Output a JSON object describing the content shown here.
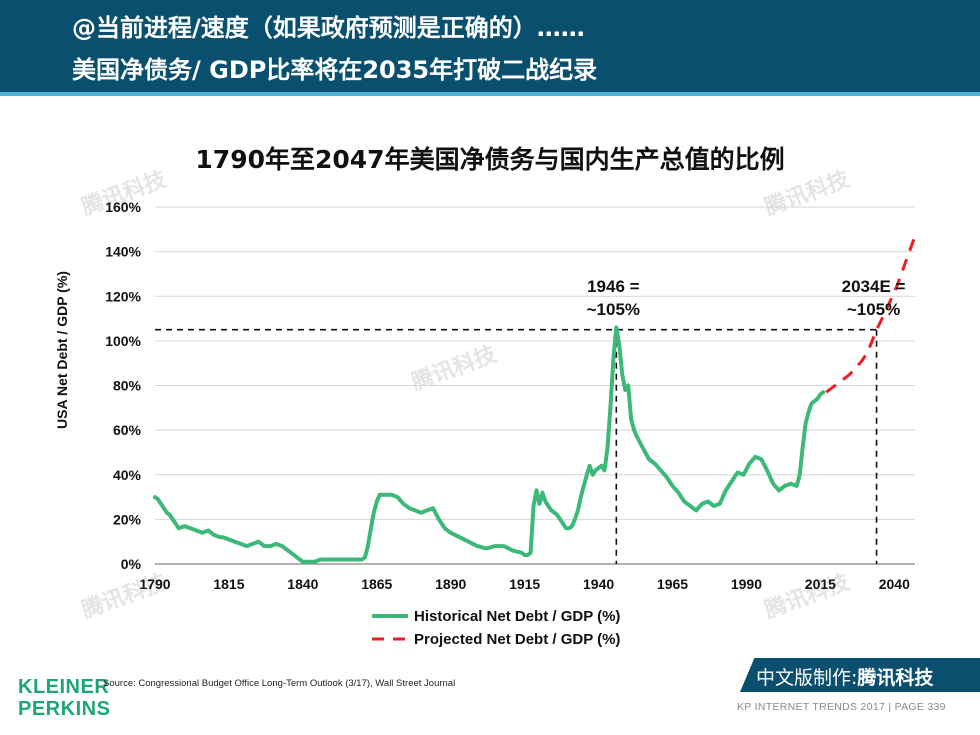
{
  "header": {
    "line1": "@当前进程/速度（如果政府预测是正确的）……",
    "line2": "美国净债务/ GDP比率将在2035年打破二战纪录"
  },
  "chart_data": {
    "type": "line",
    "title": "1790年至2047年美国净债务与国内生产总值的比例",
    "ylabel": "USA Net Debt / GDP (%)",
    "xlabel": "",
    "xlim": [
      1790,
      2047
    ],
    "ylim": [
      0,
      160
    ],
    "x_ticks": [
      1790,
      1815,
      1840,
      1865,
      1890,
      1915,
      1940,
      1965,
      1990,
      2015,
      2040
    ],
    "y_ticks": [
      0,
      20,
      40,
      60,
      80,
      100,
      120,
      140,
      160
    ],
    "y_tick_labels": [
      "0%",
      "20%",
      "40%",
      "60%",
      "80%",
      "100%",
      "120%",
      "140%",
      "160%"
    ],
    "grid": true,
    "series": [
      {
        "name": "Historical Net Debt / GDP (%)",
        "color": "#3cb878",
        "style": "solid",
        "x": [
          1790,
          1791,
          1792,
          1793,
          1794,
          1795,
          1796,
          1797,
          1798,
          1800,
          1802,
          1804,
          1806,
          1808,
          1810,
          1812,
          1813,
          1815,
          1817,
          1819,
          1821,
          1823,
          1825,
          1827,
          1829,
          1831,
          1833,
          1835,
          1836,
          1838,
          1840,
          1842,
          1844,
          1846,
          1848,
          1850,
          1852,
          1854,
          1856,
          1858,
          1860,
          1861,
          1862,
          1863,
          1864,
          1865,
          1866,
          1868,
          1870,
          1872,
          1874,
          1876,
          1878,
          1880,
          1882,
          1884,
          1886,
          1888,
          1890,
          1893,
          1896,
          1899,
          1902,
          1905,
          1908,
          1911,
          1914,
          1915,
          1916,
          1917,
          1918,
          1919,
          1920,
          1921,
          1922,
          1924,
          1926,
          1928,
          1929,
          1930,
          1931,
          1932,
          1933,
          1934,
          1935,
          1936,
          1937,
          1938,
          1939,
          1940,
          1941,
          1942,
          1943,
          1944,
          1945,
          1946,
          1947,
          1948,
          1949,
          1950,
          1951,
          1952,
          1953,
          1955,
          1957,
          1959,
          1961,
          1963,
          1965,
          1967,
          1969,
          1971,
          1973,
          1975,
          1977,
          1979,
          1981,
          1983,
          1985,
          1987,
          1989,
          1991,
          1993,
          1995,
          1997,
          1999,
          2001,
          2003,
          2005,
          2007,
          2008,
          2009,
          2010,
          2011,
          2012,
          2013,
          2014,
          2015,
          2016
        ],
        "values": [
          30,
          29,
          27,
          25,
          23,
          22,
          20,
          18,
          16,
          17,
          16,
          15,
          14,
          15,
          13,
          12,
          12,
          11,
          10,
          9,
          8,
          9,
          10,
          8,
          8,
          9,
          8,
          6,
          5,
          3,
          1,
          1,
          1,
          2,
          2,
          2,
          2,
          2,
          2,
          2,
          2,
          3,
          8,
          16,
          23,
          28,
          31,
          31,
          31,
          30,
          27,
          25,
          24,
          23,
          24,
          25,
          20,
          16,
          14,
          12,
          10,
          8,
          7,
          8,
          8,
          6,
          5,
          4,
          4,
          5,
          26,
          33,
          27,
          32,
          28,
          24,
          22,
          18,
          16,
          16,
          17,
          20,
          24,
          30,
          35,
          40,
          44,
          40,
          42,
          43,
          44,
          42,
          52,
          70,
          92,
          106,
          98,
          85,
          78,
          80,
          65,
          60,
          57,
          52,
          47,
          45,
          42,
          39,
          35,
          32,
          28,
          26,
          24,
          27,
          28,
          26,
          27,
          33,
          37,
          41,
          40,
          45,
          48,
          47,
          42,
          36,
          33,
          35,
          36,
          35,
          40,
          52,
          63,
          68,
          72,
          73,
          74,
          76,
          77
        ]
      },
      {
        "name": "Projected Net Debt / GDP (%)",
        "color": "#ee1c25",
        "style": "dashed",
        "x": [
          2017,
          2019,
          2021,
          2023,
          2025,
          2027,
          2029,
          2031,
          2034,
          2037,
          2041,
          2044,
          2047
        ],
        "values": [
          77,
          79,
          81,
          83,
          85,
          88,
          91,
          95,
          105,
          113,
          125,
          136,
          147
        ]
      }
    ],
    "annotations": [
      {
        "line1": "1946 =",
        "line2": "~105%",
        "x": 1946,
        "y": 105
      },
      {
        "line1": "2034E =",
        "line2": "~105%",
        "x": 2034,
        "y": 105
      }
    ]
  },
  "source": "Source: Congressional Budget Office Long-Term Outlook (3/17), Wall Street Journal",
  "logo": {
    "line1": "KLEINER",
    "line2": "PERKINS"
  },
  "badge": {
    "prefix": "中文版制作:",
    "brand": "腾讯科技"
  },
  "footer": "KP INTERNET TRENDS 2017  |  PAGE 339",
  "watermark": "腾讯科技",
  "colors": {
    "header_bg": "#0b4f6e",
    "accent": "#4fb3d9",
    "historical": "#3cb878",
    "projected": "#ee1c25",
    "logo": "#1fa37a"
  }
}
